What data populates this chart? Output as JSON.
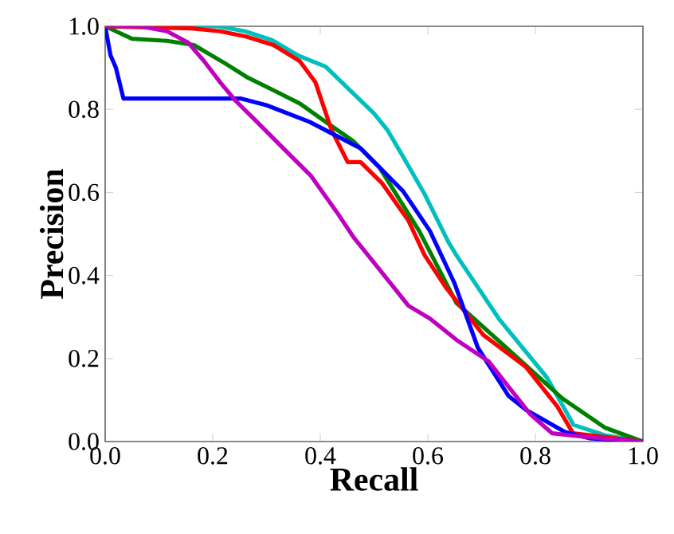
{
  "chart_data": {
    "type": "line",
    "xlabel": "Recall",
    "ylabel": "Precision",
    "xlim": [
      0,
      1
    ],
    "ylim": [
      0,
      1
    ],
    "xticks": [
      {
        "value": 0,
        "label": "0.0"
      },
      0.2,
      0.4,
      0.6,
      0.8,
      {
        "value": 1,
        "label": "1.0"
      }
    ],
    "yticks": [
      {
        "value": 0,
        "label": "0.0"
      },
      0.2,
      0.4,
      0.6,
      0.8,
      {
        "value": 1,
        "label": "1.0"
      }
    ],
    "marker": "none",
    "line_style": "solid",
    "series": [
      {
        "color": "#00bfbf",
        "x": [
          0,
          0.21,
          0.26,
          0.31,
          0.36,
          0.41,
          0.46,
          0.5,
          0.525,
          0.554,
          0.594,
          0.638,
          0.653,
          0.732,
          0.821,
          0.871,
          0.93,
          1.0
        ],
        "values": [
          1.0,
          1.0,
          0.988,
          0.967,
          0.929,
          0.903,
          0.84,
          0.79,
          0.75,
          0.686,
          0.596,
          0.481,
          0.449,
          0.296,
          0.155,
          0.04,
          0.015,
          0
        ]
      },
      {
        "color": "#008000",
        "x": [
          0,
          0.05,
          0.115,
          0.165,
          0.224,
          0.263,
          0.313,
          0.362,
          0.411,
          0.461,
          0.51,
          0.584,
          0.653,
          0.752,
          0.85,
          0.93,
          1.0
        ],
        "values": [
          1.0,
          0.97,
          0.965,
          0.955,
          0.91,
          0.878,
          0.846,
          0.814,
          0.769,
          0.724,
          0.66,
          0.507,
          0.334,
          0.219,
          0.104,
          0.033,
          0
        ]
      },
      {
        "color": "#ff0000",
        "x": [
          0,
          0.16,
          0.214,
          0.263,
          0.313,
          0.362,
          0.391,
          0.421,
          0.451,
          0.475,
          0.515,
          0.564,
          0.594,
          0.633,
          0.703,
          0.782,
          0.841,
          0.87,
          1.0
        ],
        "values": [
          1.0,
          0.995,
          0.988,
          0.975,
          0.955,
          0.916,
          0.865,
          0.75,
          0.673,
          0.673,
          0.622,
          0.532,
          0.449,
          0.372,
          0.257,
          0.18,
          0.084,
          0.02,
          0
        ]
      },
      {
        "color": "#0000ff",
        "x": [
          0,
          0.01,
          0.02,
          0.034,
          0.253,
          0.3,
          0.38,
          0.475,
          0.554,
          0.604,
          0.65,
          0.693,
          0.75,
          0.782,
          0.855,
          0.9,
          1.0
        ],
        "values": [
          1.0,
          0.93,
          0.9,
          0.826,
          0.826,
          0.81,
          0.77,
          0.706,
          0.603,
          0.507,
          0.38,
          0.226,
          0.11,
          0.077,
          0.023,
          0.008,
          0
        ]
      },
      {
        "color": "#bf00bf",
        "x": [
          0,
          0.066,
          0.115,
          0.154,
          0.184,
          0.214,
          0.243,
          0.283,
          0.332,
          0.382,
          0.431,
          0.463,
          0.503,
          0.564,
          0.604,
          0.653,
          0.713,
          0.752,
          0.791,
          0.831,
          0.9,
          1.0
        ],
        "values": [
          1.0,
          1.0,
          0.988,
          0.961,
          0.916,
          0.865,
          0.82,
          0.769,
          0.705,
          0.641,
          0.552,
          0.49,
          0.426,
          0.327,
          0.296,
          0.245,
          0.193,
          0.129,
          0.065,
          0.02,
          0.01,
          0
        ]
      }
    ]
  }
}
